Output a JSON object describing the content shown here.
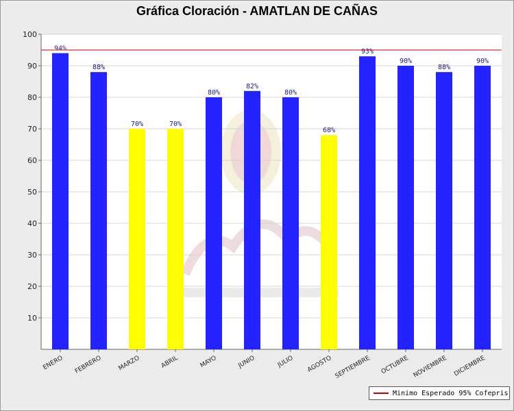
{
  "chart_data": {
    "type": "bar",
    "title": "Gráfica Cloración - AMATLAN DE CAÑAS",
    "xlabel": "",
    "ylabel": "",
    "ylim": [
      0,
      100
    ],
    "yticks": [
      10,
      20,
      30,
      40,
      50,
      60,
      70,
      80,
      90,
      100
    ],
    "grid": true,
    "categories": [
      "ENERO",
      "FEBRERO",
      "MARZO",
      "ABRIL",
      "MAYO",
      "JUNIO",
      "JULIO",
      "AGOSTO",
      "SEPTIEMBRE",
      "OCTUBRE",
      "NOVIEMBRE",
      "DICIEMBRE"
    ],
    "values": [
      94,
      88,
      70,
      70,
      80,
      82,
      80,
      68,
      93,
      90,
      88,
      90
    ],
    "data_labels": [
      "94%",
      "88%",
      "70%",
      "70%",
      "80%",
      "82%",
      "80%",
      "68%",
      "93%",
      "90%",
      "88%",
      "90%"
    ],
    "bar_colors": [
      "#2323ff",
      "#2323ff",
      "#ffff00",
      "#ffff00",
      "#2323ff",
      "#2323ff",
      "#2323ff",
      "#ffff00",
      "#2323ff",
      "#2323ff",
      "#2323ff",
      "#2323ff"
    ],
    "reference_line": {
      "value": 95,
      "label": "Minimo Esperado 95% Cofepris",
      "color": "#cc0000"
    },
    "legend_position": "bottom-right"
  }
}
